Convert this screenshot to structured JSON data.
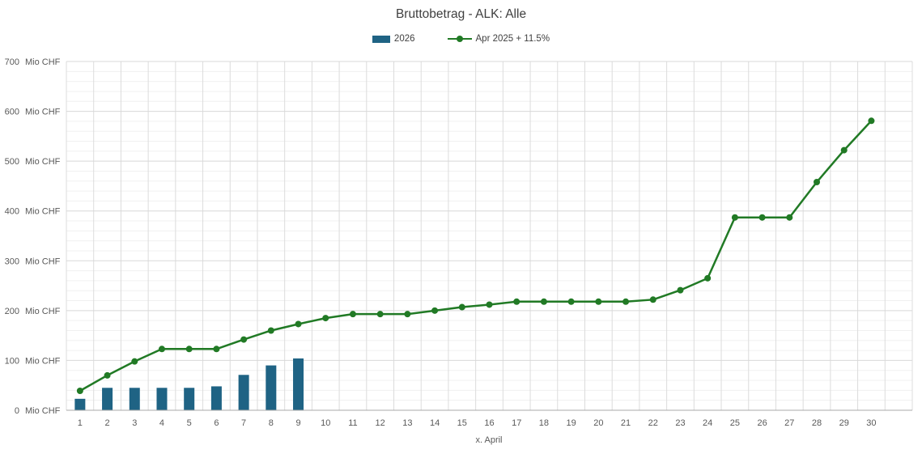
{
  "chart": {
    "title": "Bruttobetrag - ALK: Alle"
  },
  "chart_data": {
    "type": "combo (bar + line)",
    "title": "Bruttobetrag - ALK: Alle",
    "xlabel": "x. April",
    "ylabel_unit": "Mio CHF",
    "ylim": [
      0,
      700
    ],
    "y_major_step": 100,
    "y_minor_step": 20,
    "grid": true,
    "legend_position": "top",
    "right_padding_categories": 1,
    "categories": [
      1,
      2,
      3,
      4,
      5,
      6,
      7,
      8,
      9,
      10,
      11,
      12,
      13,
      14,
      15,
      16,
      17,
      18,
      19,
      20,
      21,
      22,
      23,
      24,
      25,
      26,
      27,
      28,
      29,
      30
    ],
    "series": [
      {
        "name": "2026",
        "type": "bar",
        "color": "#1F6384",
        "values": [
          23,
          45,
          45,
          45,
          45,
          48,
          71,
          90,
          104,
          null,
          null,
          null,
          null,
          null,
          null,
          null,
          null,
          null,
          null,
          null,
          null,
          null,
          null,
          null,
          null,
          null,
          null,
          null,
          null,
          null
        ]
      },
      {
        "name": "Apr 2025 + 11.5%",
        "type": "line",
        "color": "#217A25",
        "values": [
          39,
          70,
          98,
          123,
          123,
          123,
          142,
          160,
          173,
          185,
          193,
          193,
          193,
          200,
          207,
          212,
          218,
          218,
          218,
          218,
          218,
          222,
          241,
          265,
          387,
          387,
          387,
          458,
          522,
          581
        ]
      }
    ]
  },
  "colors": {
    "bar_series": "#1F6384",
    "line_series": "#217A25",
    "title_text": "#3F3F3F",
    "axis_text": "#595959"
  }
}
